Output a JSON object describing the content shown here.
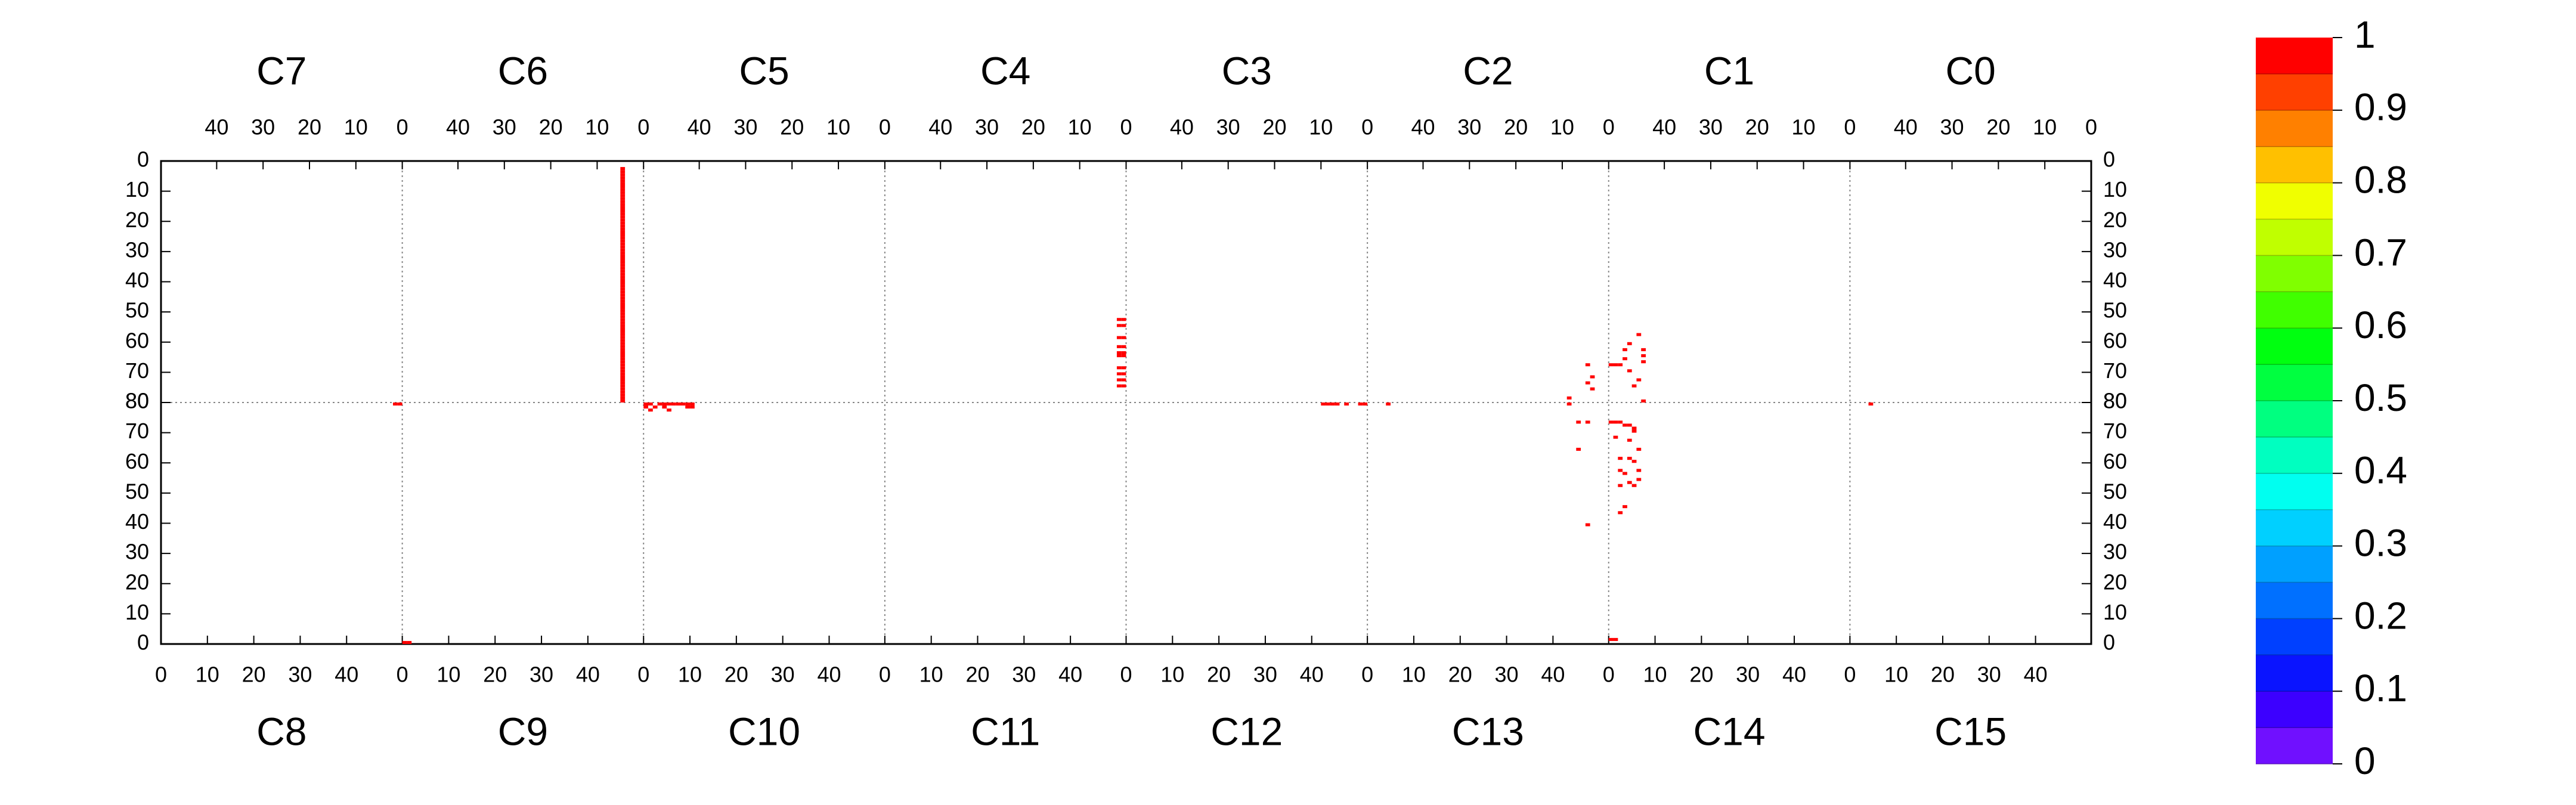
{
  "chart_data": {
    "type": "hitmap",
    "top_panels": [
      "C7",
      "C6",
      "C5",
      "C4",
      "C3",
      "C2",
      "C1",
      "C0"
    ],
    "bottom_panels": [
      "C8",
      "C9",
      "C10",
      "C11",
      "C12",
      "C13",
      "C14",
      "C15"
    ],
    "xlim": [
      0,
      52
    ],
    "ylim": [
      0,
      80
    ],
    "top_xticks": [
      40,
      30,
      20,
      10,
      0
    ],
    "bottom_xticks": [
      0,
      10,
      20,
      30,
      40
    ],
    "yticks": [
      0,
      10,
      20,
      30,
      40,
      50,
      60,
      70,
      80
    ],
    "grid": true,
    "colorbar_lim": [
      0,
      1
    ],
    "colorbar_ticks": [
      0,
      0.1,
      0.2,
      0.3,
      0.4,
      0.5,
      0.6,
      0.7,
      0.8,
      0.9,
      1
    ],
    "colorbar_colors": [
      "#7010ff",
      "#3c00ff",
      "#0a14ff",
      "#0040ff",
      "#0070ff",
      "#00a0ff",
      "#00d0ff",
      "#00fff0",
      "#00ffc0",
      "#00ff80",
      "#00ff40",
      "#00ff10",
      "#40ff00",
      "#80ff00",
      "#c0ff00",
      "#f0ff00",
      "#ffc000",
      "#ff8000",
      "#ff4000",
      "#ff0000"
    ],
    "hits": [
      {
        "panel": "C8",
        "x": [
          50,
          51
        ],
        "y": [
          79,
          79
        ],
        "values": [
          1,
          1
        ]
      },
      {
        "panel": "C9",
        "x": [
          0,
          1
        ],
        "y": [
          0,
          0
        ],
        "values": [
          1,
          1
        ]
      },
      {
        "panel": "C6",
        "x": [
          4,
          4,
          4,
          4,
          4,
          4,
          4,
          4,
          4,
          4,
          4,
          4,
          4,
          4,
          4,
          4,
          4,
          4,
          4,
          4,
          4,
          4,
          4,
          4,
          4,
          4,
          4,
          4,
          4,
          4,
          4,
          4,
          4,
          4,
          4,
          4,
          4,
          4,
          4,
          4,
          4,
          4,
          4,
          4,
          4,
          4,
          4,
          4,
          4,
          4,
          4,
          4,
          4,
          4,
          4,
          4,
          4,
          4,
          4,
          4,
          4,
          4,
          4,
          4,
          4,
          4,
          4,
          4,
          4,
          4,
          4,
          4,
          4,
          4,
          4,
          4,
          4,
          4
        ],
        "y": [
          2,
          3,
          4,
          5,
          6,
          7,
          8,
          9,
          10,
          11,
          12,
          13,
          14,
          15,
          16,
          17,
          18,
          19,
          20,
          21,
          22,
          23,
          24,
          25,
          26,
          27,
          28,
          29,
          30,
          31,
          32,
          33,
          34,
          35,
          36,
          37,
          38,
          39,
          40,
          41,
          42,
          43,
          44,
          45,
          46,
          47,
          48,
          49,
          50,
          51,
          52,
          53,
          54,
          55,
          56,
          57,
          58,
          59,
          60,
          61,
          62,
          63,
          64,
          65,
          66,
          67,
          68,
          69,
          70,
          71,
          72,
          73,
          74,
          75,
          76,
          77,
          78,
          79
        ],
        "values": [
          1,
          1,
          1,
          1,
          1,
          1,
          1,
          1,
          1,
          1,
          1,
          1,
          1,
          1,
          1,
          1,
          1,
          1,
          1,
          1,
          1,
          1,
          1,
          1,
          1,
          1,
          1,
          1,
          1,
          1,
          1,
          1,
          1,
          1,
          1,
          1,
          1,
          1,
          1,
          1,
          1,
          1,
          1,
          1,
          1,
          1,
          1,
          1,
          1,
          1,
          1,
          1,
          1,
          1,
          1,
          1,
          1,
          1,
          1,
          1,
          1,
          1,
          1,
          1,
          1,
          1,
          1,
          1,
          1,
          1,
          1,
          1,
          1,
          1,
          1,
          1,
          1,
          1
        ]
      },
      {
        "panel": "C10",
        "x": [
          0,
          1,
          0,
          1,
          2,
          3,
          4,
          5,
          6,
          7,
          8,
          9,
          10,
          4,
          5,
          9,
          10
        ],
        "y": [
          79,
          79,
          78,
          77,
          78,
          79,
          79,
          79,
          79,
          79,
          79,
          79,
          79,
          78,
          77,
          78,
          78
        ],
        "values": [
          1,
          1,
          1,
          1,
          1,
          1,
          1,
          1,
          1,
          1,
          1,
          1,
          1,
          1,
          1,
          1,
          1
        ]
      },
      {
        "panel": "C4",
        "x": [
          0,
          1,
          0,
          1,
          0,
          1,
          0,
          1,
          0,
          1,
          0,
          1,
          0,
          1,
          0,
          1,
          0,
          1,
          0,
          1
        ],
        "y": [
          52,
          52,
          54,
          54,
          58,
          58,
          61,
          61,
          63,
          63,
          64,
          64,
          68,
          68,
          70,
          70,
          72,
          72,
          74,
          74
        ],
        "values": [
          1,
          1,
          1,
          1,
          1,
          1,
          1,
          1,
          1,
          1,
          1,
          1,
          1,
          1,
          1,
          1,
          1,
          1,
          1,
          1
        ]
      },
      {
        "panel": "C12",
        "x": [
          42,
          43,
          44,
          45,
          47,
          50,
          51
        ],
        "y": [
          79,
          79,
          79,
          79,
          79,
          79,
          79
        ],
        "values": [
          1,
          1,
          1,
          1,
          1,
          1,
          1
        ]
      },
      {
        "panel": "C13",
        "x": [
          4,
          43,
          45,
          47,
          45,
          47
        ],
        "y": [
          79,
          79,
          73,
          73,
          64,
          39
        ],
        "values": [
          1,
          1,
          1,
          1,
          1,
          1
        ]
      },
      {
        "panel": "C2",
        "x": [
          8,
          4,
          3,
          4,
          3
        ],
        "y": [
          78,
          67,
          71,
          73,
          75
        ],
        "values": [
          1,
          1,
          1,
          1,
          1
        ]
      },
      {
        "panel": "C1",
        "x": [
          51,
          50,
          48,
          48,
          47,
          46,
          45,
          45,
          44,
          44,
          44,
          44,
          47,
          49
        ],
        "y": [
          67,
          67,
          62,
          65,
          69,
          74,
          72,
          57,
          64,
          66,
          62,
          79,
          60,
          67
        ],
        "values": [
          1,
          1,
          1,
          1,
          1,
          1,
          1,
          1,
          1,
          1,
          1,
          1,
          1,
          1
        ]
      },
      {
        "panel": "C14",
        "x": [
          0,
          1,
          0,
          1,
          2,
          3,
          4,
          5,
          1,
          4,
          6,
          2,
          4,
          2,
          3,
          6,
          4,
          5,
          6,
          2,
          3,
          2,
          5,
          5
        ],
        "y": [
          1,
          1,
          73,
          73,
          73,
          72,
          72,
          71,
          68,
          67,
          64,
          61,
          61,
          57,
          56,
          57,
          53,
          52,
          54,
          52,
          45,
          43,
          70,
          60
        ],
        "values": [
          1,
          1,
          1,
          1,
          1,
          1,
          1,
          1,
          1,
          1,
          1,
          1,
          1,
          1,
          1,
          1,
          1,
          1,
          1,
          1,
          1,
          1,
          1,
          1
        ]
      },
      {
        "panel": "C15",
        "x": [
          4
        ],
        "y": [
          79
        ],
        "values": [
          1
        ]
      }
    ]
  }
}
